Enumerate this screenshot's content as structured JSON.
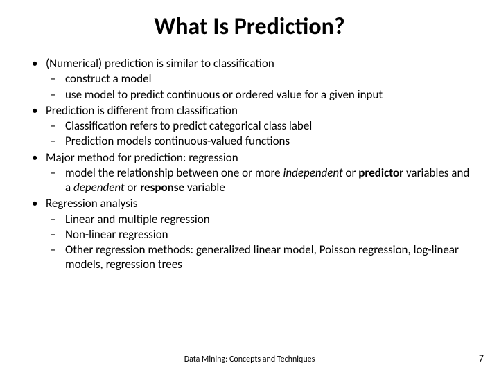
{
  "title": "What Is Prediction?",
  "title_fontsize": 34,
  "body_fontsize": 17,
  "footer_fontsize": 12,
  "pagenum_fontsize": 14,
  "text_color": "#000000",
  "background_color": "#ffffff",
  "bullets": {
    "b1": "(Numerical) prediction is similar to classification",
    "b1_1": "construct a model",
    "b1_2": "use model to predict continuous or ordered  value for a given input",
    "b2": "Prediction is different from classification",
    "b2_1": "Classification refers to predict categorical class label",
    "b2_2": "Prediction models continuous-valued functions",
    "b3": "Major method for prediction: regression",
    "b3_1_pre": "model the relationship between one or more ",
    "b3_1_independent": "independent",
    "b3_1_or1": " or ",
    "b3_1_predictor": "predictor",
    "b3_1_mid": " variables and a ",
    "b3_1_dependent": "dependent",
    "b3_1_or2": " or ",
    "b3_1_response": "response",
    "b3_1_end": " variable",
    "b4": "Regression analysis",
    "b4_1": "Linear and multiple regression",
    "b4_2": "Non-linear regression",
    "b4_3": "Other regression methods: generalized linear model, Poisson regression, log-linear models, regression trees"
  },
  "footer": "Data Mining: Concepts and Techniques",
  "page_number": "7"
}
